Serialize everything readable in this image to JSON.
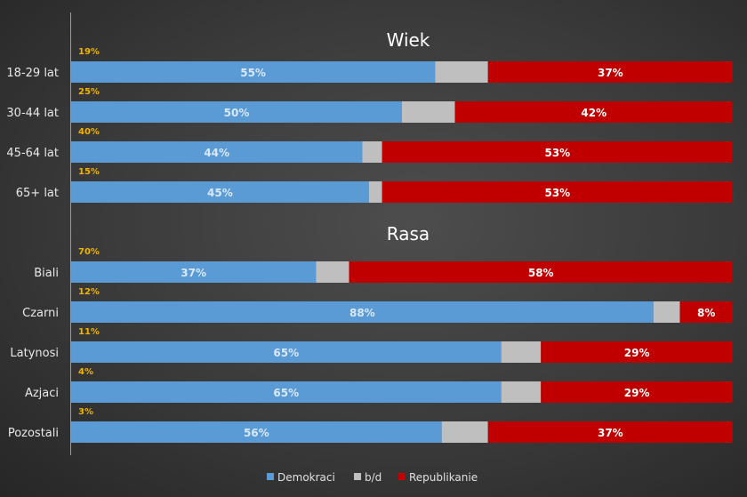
{
  "chart_data": {
    "type": "bar",
    "orientation": "horizontal",
    "stacked": true,
    "normalized": true,
    "legend_position": "bottom",
    "grid": false,
    "colors": {
      "Demokraci": "#5b9bd5",
      "b/d": "#bfbfbf",
      "Republikanie": "#c00000",
      "share": "#f0b400"
    },
    "series_names": [
      "Demokraci",
      "b/d",
      "Republikanie"
    ],
    "sections": [
      {
        "title": "Wiek",
        "rows": [
          {
            "category": "18-29 lat",
            "share": "19%",
            "values": [
              55,
              8,
              37
            ],
            "labels": [
              "55%",
              "",
              "37%"
            ]
          },
          {
            "category": "30-44 lat",
            "share": "25%",
            "values": [
              50,
              8,
              42
            ],
            "labels": [
              "50%",
              "",
              "42%"
            ]
          },
          {
            "category": "45-64 lat",
            "share": "40%",
            "values": [
              44,
              3,
              53
            ],
            "labels": [
              "44%",
              "",
              "53%"
            ]
          },
          {
            "category": "65+ lat",
            "share": "15%",
            "values": [
              45,
              2,
              53
            ],
            "labels": [
              "45%",
              "",
              "53%"
            ]
          }
        ]
      },
      {
        "title": "Rasa",
        "rows": [
          {
            "category": "Biali",
            "share": "70%",
            "values": [
              37,
              5,
              58
            ],
            "labels": [
              "37%",
              "",
              "58%"
            ]
          },
          {
            "category": "Czarni",
            "share": "12%",
            "values": [
              88,
              4,
              8
            ],
            "labels": [
              "88%",
              "",
              "8%"
            ]
          },
          {
            "category": "Latynosi",
            "share": "11%",
            "values": [
              65,
              6,
              29
            ],
            "labels": [
              "65%",
              "",
              "29%"
            ]
          },
          {
            "category": "Azjaci",
            "share": "4%",
            "values": [
              65,
              6,
              29
            ],
            "labels": [
              "65%",
              "",
              "29%"
            ]
          },
          {
            "category": "Pozostali",
            "share": "3%",
            "values": [
              56,
              7,
              37
            ],
            "labels": [
              "56%",
              "",
              "37%"
            ]
          }
        ]
      }
    ]
  }
}
